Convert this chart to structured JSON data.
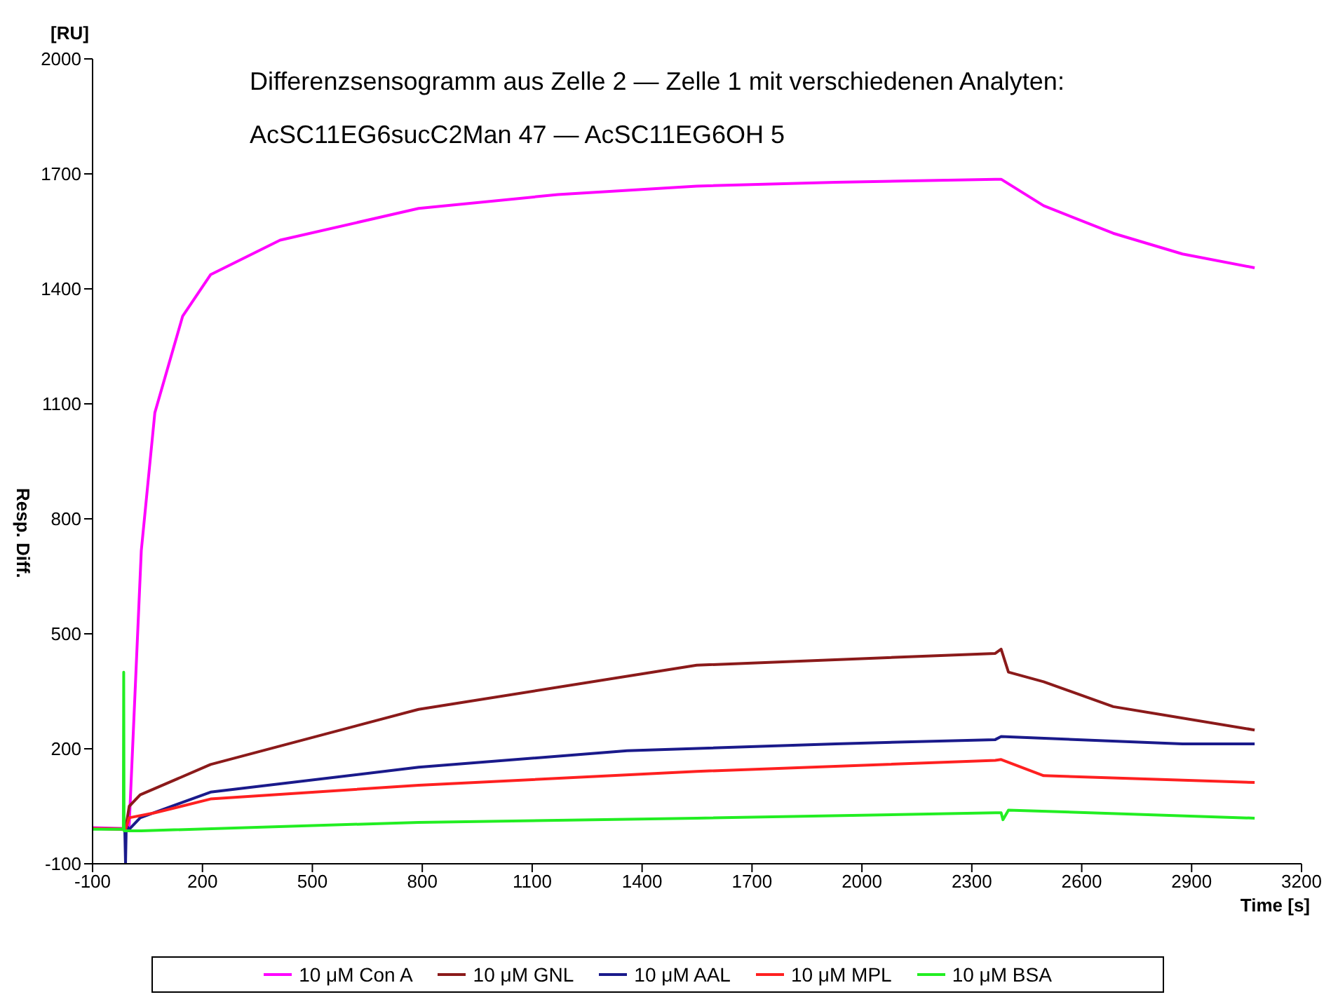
{
  "chart_data": {
    "type": "line",
    "title": "Differenzsensogramm aus Zelle 2 — Zelle 1 mit verschiedenen Analyten:",
    "subtitle": "AcSC11EG6sucC2Man 47 — AcSC11EG6OH 5",
    "xlabel": "Time [s]",
    "ylabel": "Resp. Diff.",
    "annotations": [
      "[RU]"
    ],
    "xlim": [
      -100,
      3200
    ],
    "xticks": [
      -100,
      200,
      500,
      800,
      1100,
      1400,
      1700,
      2000,
      2300,
      2600,
      2900,
      3200
    ],
    "ylim": [
      -100,
      2000
    ],
    "yticks": [
      -100,
      200,
      500,
      800,
      1100,
      1400,
      1700,
      2000
    ],
    "grid": false,
    "legend": "bottom",
    "marker": "none",
    "line_style": "solid",
    "series": [
      {
        "name": "10 μM Con A",
        "color": "#ff00ff",
        "x": [
          -100,
          -10,
          0,
          33,
          70,
          146,
          222,
          412,
          790,
          1170,
          1549,
          1928,
          2364,
          2380,
          2496,
          2686,
          2875,
          3072
        ],
        "values": [
          -6,
          -8,
          0,
          717,
          1077,
          1329,
          1437,
          1527,
          1610,
          1646,
          1668,
          1678,
          1686,
          1686,
          1617,
          1545,
          1491,
          1455
        ]
      },
      {
        "name": "10 μM GNL",
        "color": "#8b1a1a",
        "x": [
          -100,
          -10,
          0,
          30,
          222,
          790,
          1549,
          2364,
          2380,
          2400,
          2496,
          2686,
          3072
        ],
        "values": [
          -8,
          -10,
          50,
          80,
          159,
          303,
          418,
          449,
          460,
          400,
          375,
          310,
          249
        ]
      },
      {
        "name": "10 μM AAL",
        "color": "#1a1a8b",
        "x": [
          -12,
          -10,
          -8,
          0,
          30,
          222,
          790,
          1359,
          1928,
          2364,
          2380,
          2875,
          3072
        ],
        "values": [
          -12,
          -100,
          0,
          -10,
          20,
          87,
          152,
          195,
          213,
          224,
          232,
          213,
          213
        ]
      },
      {
        "name": "10 μM MPL",
        "color": "#ff2020",
        "x": [
          -100,
          -10,
          0,
          70,
          222,
          790,
          1549,
          2364,
          2380,
          2496,
          3072
        ],
        "values": [
          -8,
          -10,
          20,
          33,
          69,
          105,
          141,
          170,
          172,
          130,
          112
        ]
      },
      {
        "name": "10 μM BSA",
        "color": "#22ee22",
        "x": [
          -100,
          -16,
          -15,
          -14,
          33,
          790,
          1549,
          2364,
          2380,
          2385,
          2400,
          3072
        ],
        "values": [
          -10,
          -10,
          400,
          -14,
          -14,
          8,
          19,
          33,
          33,
          15,
          40,
          19
        ]
      }
    ]
  }
}
